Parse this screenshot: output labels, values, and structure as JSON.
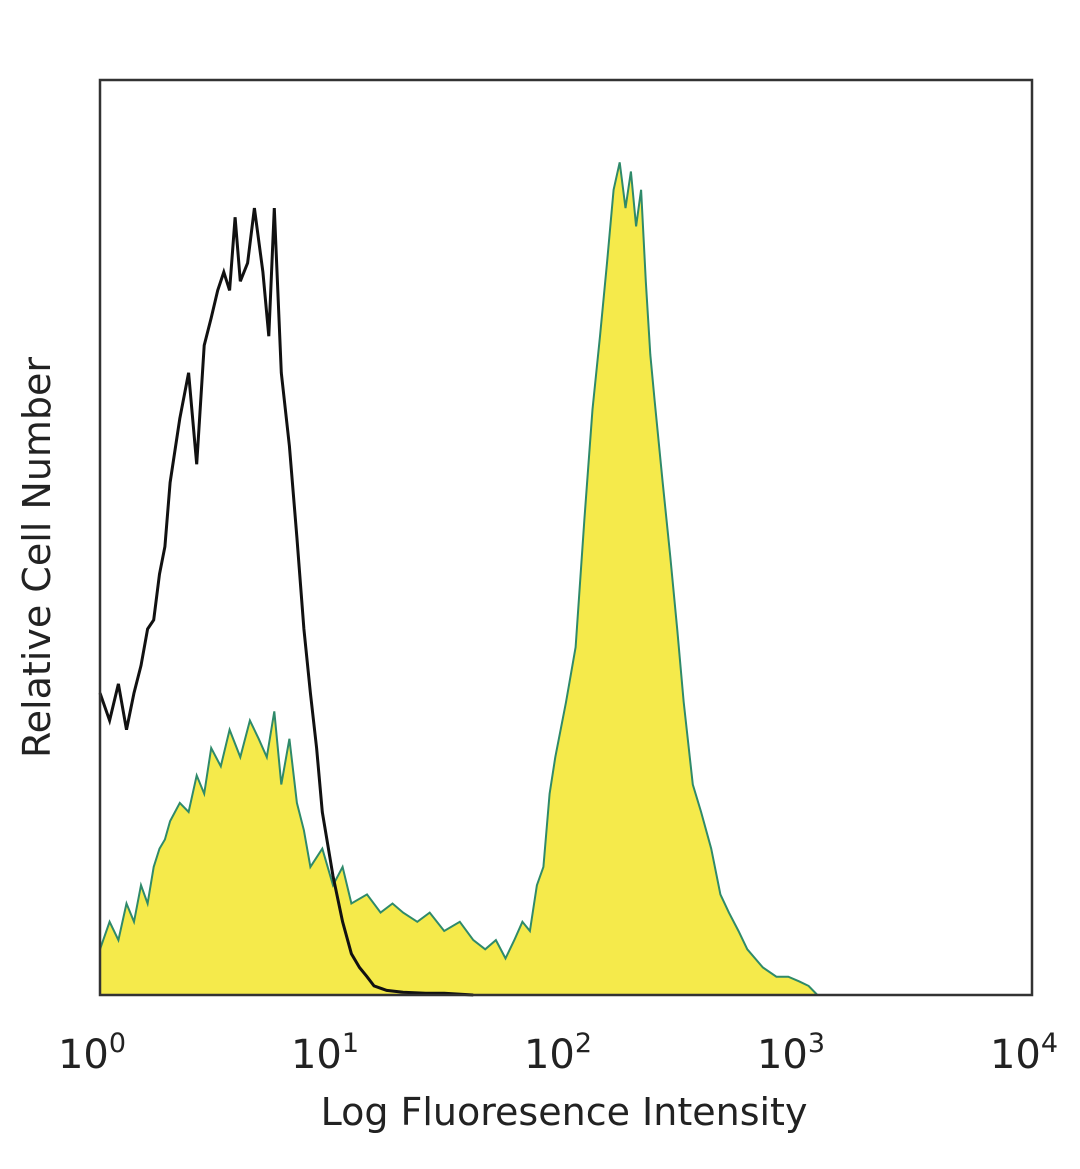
{
  "chart_data": {
    "type": "area",
    "title": "",
    "xlabel": "Log Fluoresence Intensity",
    "ylabel": "Relative Cell Number",
    "x_scale": "log",
    "xlim": [
      1,
      10000
    ],
    "ylim": [
      0,
      100
    ],
    "grid": false,
    "x_ticks": [
      {
        "value": 1,
        "base": "10",
        "exp": "0"
      },
      {
        "value": 10,
        "base": "10",
        "exp": "1"
      },
      {
        "value": 100,
        "base": "10",
        "exp": "2"
      },
      {
        "value": 1000,
        "base": "10",
        "exp": "3"
      },
      {
        "value": 10000,
        "base": "10",
        "exp": "4"
      }
    ],
    "series": [
      {
        "style": "outline",
        "color": "#111111",
        "x": [
          1.0,
          1.1,
          1.2,
          1.3,
          1.4,
          1.5,
          1.6,
          1.7,
          1.8,
          1.9,
          2.0,
          2.2,
          2.4,
          2.6,
          2.8,
          3.0,
          3.2,
          3.4,
          3.6,
          3.8,
          4.0,
          4.3,
          4.6,
          5.0,
          5.3,
          5.6,
          6.0,
          6.5,
          7.0,
          7.5,
          8.0,
          8.5,
          9.0,
          10.0,
          11.0,
          12.0,
          13.0,
          14.0,
          15.0,
          17.0,
          20.0,
          25.0,
          30.0,
          40.0
        ],
        "y": [
          33,
          30,
          34,
          29,
          33,
          36,
          40,
          41,
          46,
          49,
          56,
          63,
          68,
          58,
          71,
          74,
          77,
          79,
          77,
          85,
          78,
          80,
          86,
          79,
          72,
          86,
          68,
          60,
          50,
          40,
          33,
          27,
          20,
          13,
          8,
          4.5,
          3,
          2,
          1,
          0.5,
          0.3,
          0.2,
          0.2,
          0
        ]
      },
      {
        "style": "filled",
        "color": "#f5ea4b",
        "edge_color": "#2f8a6a",
        "x": [
          1.0,
          1.1,
          1.2,
          1.3,
          1.4,
          1.5,
          1.6,
          1.7,
          1.8,
          1.9,
          2.0,
          2.2,
          2.4,
          2.6,
          2.8,
          3.0,
          3.3,
          3.6,
          4.0,
          4.4,
          4.8,
          5.2,
          5.6,
          6.0,
          6.5,
          7.0,
          7.5,
          8.0,
          9.0,
          10.0,
          11.0,
          12.0,
          14.0,
          16.0,
          18.0,
          20.0,
          23.0,
          26.0,
          30.0,
          35.0,
          40.0,
          45.0,
          50.0,
          55.0,
          60.0,
          65.0,
          70.0,
          75.0,
          80.0,
          85.0,
          90.0,
          100.0,
          110.0,
          120.0,
          130.0,
          140.0,
          150.0,
          160.0,
          170.0,
          180.0,
          190.0,
          200.0,
          210.0,
          220.0,
          230.0,
          240.0,
          260.0,
          280.0,
          300.0,
          320.0,
          350.0,
          380.0,
          420.0,
          460.0,
          500.0,
          550.0,
          600.0,
          700.0,
          800.0,
          900.0,
          1000.0,
          1100.0,
          1200.0
        ],
        "y": [
          5,
          8,
          6,
          10,
          8,
          12,
          10,
          14,
          16,
          17,
          19,
          21,
          20,
          24,
          22,
          27,
          25,
          29,
          26,
          30,
          28,
          26,
          31,
          23,
          28,
          21,
          18,
          14,
          16,
          12,
          14,
          10,
          11,
          9,
          10,
          9,
          8,
          9,
          7,
          8,
          6,
          5,
          6,
          4,
          6,
          8,
          7,
          12,
          14,
          22,
          26,
          32,
          38,
          52,
          64,
          72,
          80,
          88,
          91,
          86,
          90,
          84,
          88,
          78,
          70,
          65,
          56,
          48,
          40,
          32,
          23,
          20,
          16,
          11,
          9,
          7,
          5,
          3,
          2,
          2,
          1.5,
          1,
          0
        ]
      }
    ]
  }
}
